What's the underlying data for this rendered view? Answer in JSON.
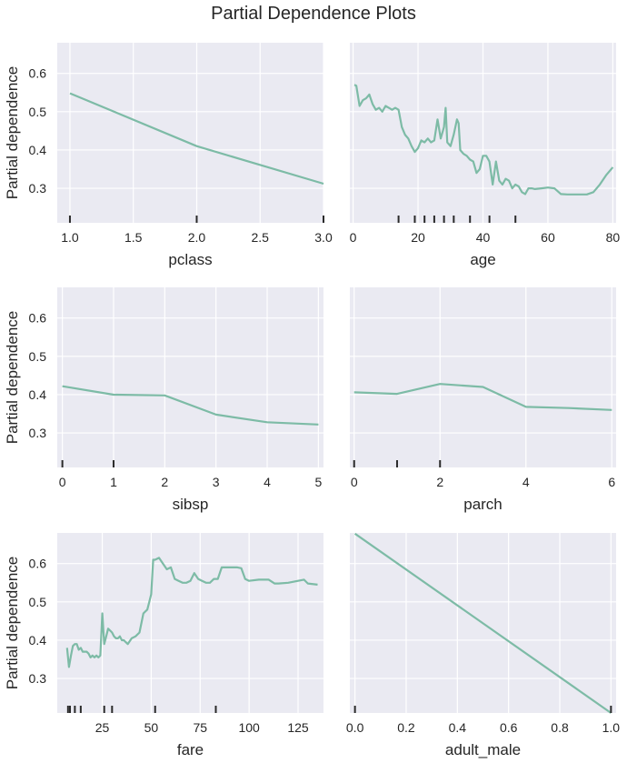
{
  "title": "Partial Dependence Plots",
  "colors": {
    "line": "#7dbba6",
    "panel": "#eaeaf2",
    "grid": "#ffffff",
    "rug": "#2a2a2a",
    "text": "#262626"
  },
  "chart_data": {
    "type": "line",
    "title": "Partial Dependence Plots",
    "ylabel": "Partial dependence",
    "ylim": [
      0.21,
      0.68
    ],
    "yticks": [
      0.3,
      0.4,
      0.5,
      0.6
    ],
    "grid": true,
    "panels": [
      {
        "xlabel": "pclass",
        "xlim": [
          0.9,
          3.0
        ],
        "xticks": [
          1.0,
          1.5,
          2.0,
          2.5,
          3.0
        ],
        "xtick_labels": [
          "1.0",
          "1.5",
          "2.0",
          "2.5",
          "3.0"
        ],
        "x": [
          1,
          2,
          3
        ],
        "y": [
          0.548,
          0.41,
          0.312
        ],
        "deciles": [
          1,
          2,
          3
        ]
      },
      {
        "xlabel": "age",
        "xlim": [
          -1,
          81
        ],
        "xticks": [
          0,
          20,
          40,
          60,
          80
        ],
        "xtick_labels": [
          "0",
          "20",
          "40",
          "60",
          "80"
        ],
        "x": [
          0.4,
          1,
          2,
          3,
          4,
          5,
          6,
          7,
          8,
          9,
          10,
          11,
          12,
          13,
          14,
          15,
          16,
          17,
          18,
          19,
          20,
          21,
          22,
          23,
          24,
          25,
          26,
          27,
          28,
          28.5,
          29,
          30,
          31,
          32,
          32.5,
          33,
          34,
          35,
          36,
          37,
          38,
          39,
          40,
          41,
          42,
          43,
          44,
          45,
          46,
          47,
          48,
          49,
          50,
          51,
          52,
          53,
          54,
          55,
          56,
          58,
          60,
          62,
          64,
          66,
          68,
          70,
          72,
          74,
          76,
          78,
          80
        ],
        "y": [
          0.57,
          0.568,
          0.515,
          0.53,
          0.535,
          0.545,
          0.52,
          0.505,
          0.51,
          0.5,
          0.515,
          0.51,
          0.505,
          0.51,
          0.505,
          0.46,
          0.44,
          0.43,
          0.41,
          0.395,
          0.405,
          0.425,
          0.42,
          0.43,
          0.42,
          0.425,
          0.48,
          0.43,
          0.46,
          0.51,
          0.42,
          0.41,
          0.44,
          0.48,
          0.47,
          0.4,
          0.39,
          0.385,
          0.375,
          0.37,
          0.34,
          0.35,
          0.385,
          0.385,
          0.37,
          0.31,
          0.37,
          0.32,
          0.31,
          0.325,
          0.32,
          0.3,
          0.31,
          0.305,
          0.29,
          0.285,
          0.3,
          0.3,
          0.298,
          0.3,
          0.302,
          0.3,
          0.285,
          0.284,
          0.284,
          0.284,
          0.284,
          0.29,
          0.31,
          0.335,
          0.355
        ],
        "deciles": [
          14,
          19,
          22,
          25,
          28,
          31,
          36,
          42,
          50
        ]
      },
      {
        "xlabel": "sibsp",
        "xlim": [
          -0.1,
          5.1
        ],
        "xticks": [
          0,
          1,
          2,
          3,
          4,
          5
        ],
        "xtick_labels": [
          "0",
          "1",
          "2",
          "3",
          "4",
          "5"
        ],
        "x": [
          0,
          1,
          2,
          3,
          4,
          5
        ],
        "y": [
          0.422,
          0.4,
          0.398,
          0.348,
          0.328,
          0.322
        ],
        "deciles": [
          0,
          1
        ]
      },
      {
        "xlabel": "parch",
        "xlim": [
          -0.1,
          6.1
        ],
        "xticks": [
          0,
          2,
          4,
          6
        ],
        "xtick_labels": [
          "0",
          "2",
          "4",
          "6"
        ],
        "x": [
          0,
          1,
          2,
          3,
          4,
          5,
          6
        ],
        "y": [
          0.406,
          0.402,
          0.428,
          0.42,
          0.368,
          0.365,
          0.36
        ],
        "deciles": [
          0,
          1,
          2
        ]
      },
      {
        "xlabel": "fare",
        "xlim": [
          2,
          138
        ],
        "xticks": [
          25,
          50,
          75,
          100,
          125
        ],
        "xtick_labels": [
          "25",
          "50",
          "75",
          "100",
          "125"
        ],
        "x": [
          7,
          8,
          9,
          10,
          11,
          12,
          13,
          14,
          15,
          16,
          17,
          18,
          19,
          20,
          21,
          22,
          23,
          24,
          25,
          26,
          27,
          28,
          29,
          30,
          31,
          32,
          33,
          34,
          35,
          36,
          37,
          38,
          40,
          42,
          44,
          46,
          48,
          49,
          50,
          51,
          52,
          54,
          56,
          58,
          60,
          62,
          64,
          66,
          68,
          70,
          72,
          74,
          76,
          78,
          80,
          82,
          84,
          86,
          88,
          90,
          92,
          94,
          96,
          98,
          100,
          105,
          110,
          113,
          115,
          120,
          125,
          128,
          130,
          135
        ],
        "y": [
          0.38,
          0.33,
          0.36,
          0.385,
          0.39,
          0.39,
          0.375,
          0.38,
          0.37,
          0.37,
          0.37,
          0.365,
          0.355,
          0.36,
          0.355,
          0.36,
          0.355,
          0.36,
          0.47,
          0.39,
          0.41,
          0.43,
          0.425,
          0.42,
          0.41,
          0.405,
          0.405,
          0.41,
          0.4,
          0.4,
          0.395,
          0.39,
          0.405,
          0.41,
          0.42,
          0.47,
          0.48,
          0.5,
          0.52,
          0.61,
          0.61,
          0.615,
          0.6,
          0.585,
          0.59,
          0.56,
          0.555,
          0.55,
          0.55,
          0.555,
          0.575,
          0.56,
          0.555,
          0.55,
          0.55,
          0.56,
          0.56,
          0.59,
          0.59,
          0.59,
          0.59,
          0.59,
          0.588,
          0.56,
          0.555,
          0.558,
          0.558,
          0.548,
          0.548,
          0.55,
          0.555,
          0.558,
          0.548,
          0.545
        ],
        "deciles": [
          7.5,
          8.5,
          11,
          14,
          26,
          30,
          52,
          83
        ]
      },
      {
        "xlabel": "adult_male",
        "xlim": [
          -0.02,
          1.02
        ],
        "xticks": [
          0.0,
          0.2,
          0.4,
          0.6,
          0.8,
          1.0
        ],
        "xtick_labels": [
          "0.0",
          "0.2",
          "0.4",
          "0.6",
          "0.8",
          "1.0"
        ],
        "x": [
          0,
          1
        ],
        "y": [
          0.678,
          0.21
        ],
        "deciles": [
          0,
          1
        ]
      }
    ]
  }
}
